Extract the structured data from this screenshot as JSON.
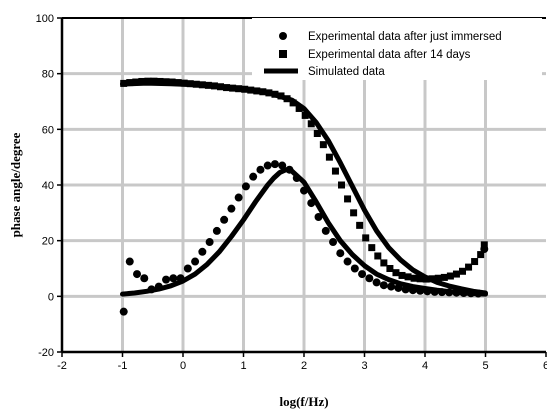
{
  "chart_data": {
    "type": "scatter",
    "xlabel": "log(f/Hz)",
    "ylabel": "phase angle/degree",
    "xlim": [
      -2,
      6
    ],
    "ylim": [
      -20,
      100
    ],
    "xticks": [
      "-2",
      "-1",
      "0",
      "1",
      "2",
      "3",
      "4",
      "5",
      "6"
    ],
    "yticks": [
      "-20",
      "0",
      "20",
      "40",
      "60",
      "80",
      "100"
    ],
    "grid": true,
    "legend_position": "top-right",
    "series": [
      {
        "name": "Experimental data after just immersed",
        "marker": "circle",
        "x": [
          -0.98,
          -0.88,
          -0.76,
          -0.64,
          -0.52,
          -0.4,
          -0.28,
          -0.16,
          -0.04,
          0.08,
          0.2,
          0.32,
          0.44,
          0.56,
          0.68,
          0.8,
          0.92,
          1.04,
          1.16,
          1.28,
          1.4,
          1.52,
          1.64,
          1.76,
          1.88,
          2.0,
          2.12,
          2.24,
          2.36,
          2.48,
          2.6,
          2.72,
          2.84,
          2.96,
          3.08,
          3.2,
          3.32,
          3.44,
          3.56,
          3.68,
          3.8,
          3.92,
          4.04,
          4.16,
          4.28,
          4.4,
          4.52,
          4.64,
          4.76,
          4.88,
          4.98
        ],
        "y": [
          -5.5,
          12.5,
          8.0,
          6.5,
          2.5,
          3.5,
          6.0,
          6.5,
          6.5,
          10.0,
          12.5,
          16.0,
          19.5,
          23.5,
          27.5,
          31.5,
          35.5,
          39.5,
          43.0,
          45.5,
          47.0,
          47.5,
          47.0,
          45.5,
          42.5,
          38.0,
          33.5,
          28.5,
          23.5,
          19.5,
          15.5,
          12.5,
          10.0,
          8.0,
          6.5,
          5.0,
          4.0,
          3.5,
          3.0,
          2.5,
          2.2,
          2.0,
          1.8,
          1.6,
          1.5,
          1.4,
          1.3,
          1.2,
          1.1,
          1.0,
          17.0
        ]
      },
      {
        "name": "Experimental data after 14 days",
        "marker": "square",
        "x": [
          -0.98,
          -0.88,
          -0.78,
          -0.68,
          -0.58,
          -0.48,
          -0.38,
          -0.28,
          -0.18,
          -0.08,
          0.02,
          0.12,
          0.22,
          0.32,
          0.42,
          0.52,
          0.62,
          0.72,
          0.82,
          0.92,
          1.02,
          1.12,
          1.22,
          1.32,
          1.42,
          1.52,
          1.62,
          1.72,
          1.82,
          1.92,
          2.02,
          2.12,
          2.22,
          2.32,
          2.42,
          2.52,
          2.62,
          2.72,
          2.82,
          2.92,
          3.02,
          3.12,
          3.22,
          3.32,
          3.42,
          3.52,
          3.62,
          3.72,
          3.82,
          3.92,
          4.02,
          4.12,
          4.22,
          4.32,
          4.42,
          4.52,
          4.62,
          4.72,
          4.82,
          4.92,
          4.98
        ],
        "y": [
          76.5,
          76.8,
          77.0,
          77.2,
          77.3,
          77.3,
          77.2,
          77.1,
          77.0,
          76.8,
          76.6,
          76.4,
          76.2,
          76.0,
          75.8,
          75.6,
          75.3,
          75.0,
          74.8,
          74.6,
          74.4,
          74.1,
          73.8,
          73.5,
          73.1,
          72.6,
          72.0,
          71.0,
          69.5,
          67.5,
          65.0,
          62.0,
          58.5,
          54.5,
          50.0,
          45.0,
          40.0,
          35.0,
          30.0,
          25.5,
          21.0,
          17.5,
          14.5,
          12.0,
          10.0,
          8.5,
          7.5,
          7.0,
          6.5,
          6.3,
          6.2,
          6.3,
          6.5,
          6.8,
          7.3,
          8.0,
          9.0,
          10.5,
          12.5,
          15.0,
          18.5
        ]
      },
      {
        "name": "Simulated data",
        "marker": "line",
        "x": [
          -1.0,
          -0.8,
          -0.6,
          -0.4,
          -0.2,
          0.0,
          0.2,
          0.4,
          0.6,
          0.8,
          1.0,
          1.2,
          1.4,
          1.5,
          1.6,
          1.7,
          1.8,
          2.0,
          2.2,
          2.4,
          2.6,
          2.8,
          3.0,
          3.2,
          3.4,
          3.6,
          3.8,
          4.0,
          4.2,
          4.4,
          4.6,
          4.8,
          5.0
        ],
        "y": [
          0.8,
          1.2,
          1.8,
          2.6,
          3.8,
          5.5,
          8.0,
          11.5,
          16.0,
          21.5,
          27.5,
          34.0,
          40.0,
          42.5,
          44.5,
          45.5,
          45.0,
          41.0,
          34.0,
          26.5,
          20.0,
          15.0,
          11.0,
          8.0,
          6.0,
          4.5,
          3.5,
          2.8,
          2.2,
          1.7,
          1.3,
          1.0,
          0.8
        ]
      },
      {
        "name": "Simulated data",
        "marker": "line",
        "x": [
          -1.0,
          -0.6,
          -0.2,
          0.2,
          0.6,
          1.0,
          1.4,
          1.8,
          2.0,
          2.2,
          2.4,
          2.6,
          2.8,
          3.0,
          3.2,
          3.4,
          3.6,
          3.8,
          4.0,
          4.2,
          4.4,
          4.6,
          4.8,
          5.0
        ],
        "y": [
          76.3,
          76.6,
          76.4,
          76.0,
          75.4,
          74.5,
          73.2,
          70.5,
          67.5,
          62.5,
          56.0,
          48.0,
          39.5,
          31.0,
          23.5,
          17.5,
          13.0,
          9.5,
          7.0,
          5.0,
          3.7,
          2.7,
          1.8,
          1.2
        ]
      }
    ]
  }
}
